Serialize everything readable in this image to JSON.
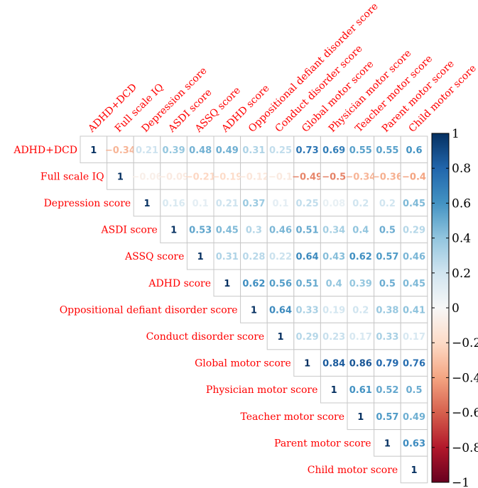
{
  "chart_data": {
    "type": "heatmap",
    "layout": "upper-triangle correlation matrix",
    "variables": [
      "ADHD+DCD",
      "Full scale IQ",
      "Depression score",
      "ASDI score",
      "ASSQ score",
      "ADHD score",
      "Oppositional defiant disorder score",
      "Conduct disorder score",
      "Global motor score",
      "Physician motor score",
      "Teacher motor score",
      "Parent motor score",
      "Child motor score"
    ],
    "matrix": [
      [
        1,
        -0.34,
        0.21,
        0.39,
        0.48,
        0.49,
        0.31,
        0.25,
        0.73,
        0.69,
        0.55,
        0.55,
        0.6
      ],
      [
        null,
        1,
        -0.06,
        -0.09,
        -0.21,
        -0.19,
        -0.12,
        -0.1,
        -0.49,
        -0.5,
        -0.34,
        -0.36,
        -0.4
      ],
      [
        null,
        null,
        1,
        0.16,
        0.1,
        0.21,
        0.37,
        0.1,
        0.25,
        0.08,
        0.2,
        0.2,
        0.45
      ],
      [
        null,
        null,
        null,
        1,
        0.53,
        0.45,
        0.3,
        0.46,
        0.51,
        0.34,
        0.4,
        0.5,
        0.29
      ],
      [
        null,
        null,
        null,
        null,
        1,
        0.31,
        0.28,
        0.22,
        0.64,
        0.43,
        0.62,
        0.57,
        0.46
      ],
      [
        null,
        null,
        null,
        null,
        null,
        1,
        0.62,
        0.56,
        0.51,
        0.4,
        0.39,
        0.5,
        0.45
      ],
      [
        null,
        null,
        null,
        null,
        null,
        null,
        1,
        0.64,
        0.33,
        0.19,
        0.2,
        0.38,
        0.41
      ],
      [
        null,
        null,
        null,
        null,
        null,
        null,
        null,
        1,
        0.29,
        0.23,
        0.17,
        0.33,
        0.17
      ],
      [
        null,
        null,
        null,
        null,
        null,
        null,
        null,
        null,
        1,
        0.84,
        0.86,
        0.79,
        0.76
      ],
      [
        null,
        null,
        null,
        null,
        null,
        null,
        null,
        null,
        null,
        1,
        0.61,
        0.52,
        0.5
      ],
      [
        null,
        null,
        null,
        null,
        null,
        null,
        null,
        null,
        null,
        null,
        1,
        0.57,
        0.49
      ],
      [
        null,
        null,
        null,
        null,
        null,
        null,
        null,
        null,
        null,
        null,
        null,
        1,
        0.63
      ],
      [
        null,
        null,
        null,
        null,
        null,
        null,
        null,
        null,
        null,
        null,
        null,
        null,
        1
      ]
    ],
    "color_range": [
      -1,
      1
    ],
    "colorbar_ticks": [
      "1",
      "0.8",
      "0.6",
      "0.4",
      "0.2",
      "0",
      "−0.2",
      "−0.4",
      "−0.6",
      "−0.8",
      "−1"
    ],
    "label_color": "#ff0000",
    "colorbar_position": "right",
    "colors": {
      "negative": "#67001f",
      "neutral": "#f7f7f7",
      "positive": "#053061"
    }
  }
}
